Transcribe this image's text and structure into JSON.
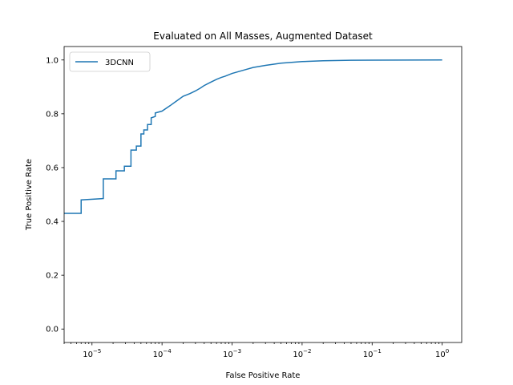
{
  "chart_data": {
    "type": "line",
    "title": "Evaluated on All Masses, Augmented Dataset",
    "xlabel": "False Positive Rate",
    "ylabel": "True Positive Rate",
    "xscale": "log",
    "xlim": [
      4e-06,
      1.9
    ],
    "ylim": [
      -0.05,
      1.05
    ],
    "xticks": [
      {
        "value": 1e-05,
        "base": "10",
        "exp": "−5"
      },
      {
        "value": 0.0001,
        "base": "10",
        "exp": "−4"
      },
      {
        "value": 0.001,
        "base": "10",
        "exp": "−3"
      },
      {
        "value": 0.01,
        "base": "10",
        "exp": "−2"
      },
      {
        "value": 0.1,
        "base": "10",
        "exp": "−1"
      },
      {
        "value": 1,
        "base": "10",
        "exp": "0"
      }
    ],
    "yticks": [
      "0.0",
      "0.2",
      "0.4",
      "0.6",
      "0.8",
      "1.0"
    ],
    "grid": false,
    "legend_position": "top-left",
    "series": [
      {
        "name": "3DCNN",
        "color": "#1f77b4",
        "step": true,
        "points": [
          [
            4e-06,
            0.43
          ],
          [
            7e-06,
            0.43
          ],
          [
            7e-06,
            0.48
          ],
          [
            1.45e-05,
            0.485
          ],
          [
            1.45e-05,
            0.558
          ],
          [
            2.2e-05,
            0.558
          ],
          [
            2.2e-05,
            0.588
          ],
          [
            2.9e-05,
            0.588
          ],
          [
            2.9e-05,
            0.605
          ],
          [
            3.6e-05,
            0.605
          ],
          [
            3.6e-05,
            0.665
          ],
          [
            4.3e-05,
            0.665
          ],
          [
            4.3e-05,
            0.68
          ],
          [
            5e-05,
            0.68
          ],
          [
            5e-05,
            0.725
          ],
          [
            5.5e-05,
            0.725
          ],
          [
            5.5e-05,
            0.74
          ],
          [
            6.2e-05,
            0.74
          ],
          [
            6.2e-05,
            0.76
          ],
          [
            7e-05,
            0.76
          ],
          [
            7e-05,
            0.785
          ],
          [
            8e-05,
            0.79
          ],
          [
            8e-05,
            0.803
          ],
          [
            0.0001,
            0.81
          ],
          [
            0.00013,
            0.83
          ],
          [
            0.00016,
            0.847
          ],
          [
            0.0002,
            0.865
          ],
          [
            0.00025,
            0.875
          ],
          [
            0.0003,
            0.885
          ],
          [
            0.00035,
            0.895
          ],
          [
            0.0004,
            0.905
          ],
          [
            0.0005,
            0.918
          ],
          [
            0.0006,
            0.928
          ],
          [
            0.0007,
            0.935
          ],
          [
            0.0008,
            0.94
          ],
          [
            0.001,
            0.95
          ],
          [
            0.0015,
            0.963
          ],
          [
            0.002,
            0.972
          ],
          [
            0.003,
            0.98
          ],
          [
            0.005,
            0.988
          ],
          [
            0.01,
            0.994
          ],
          [
            0.02,
            0.997
          ],
          [
            0.05,
            0.999
          ],
          [
            0.1,
            0.9995
          ],
          [
            1,
            1.0
          ]
        ]
      }
    ]
  }
}
